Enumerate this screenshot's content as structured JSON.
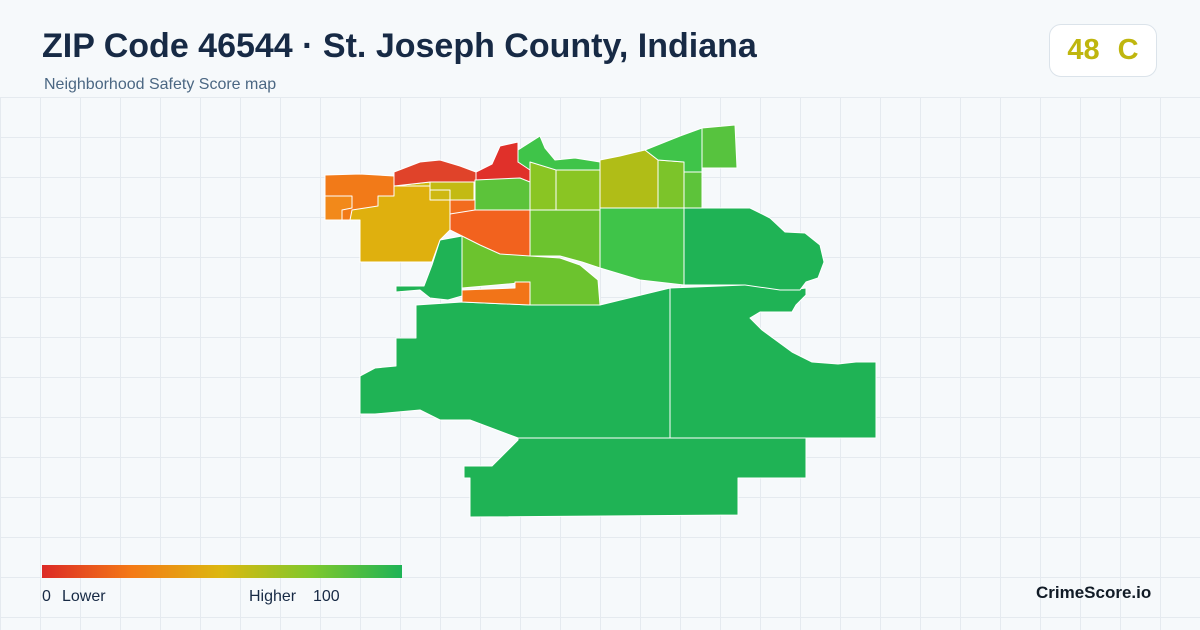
{
  "header": {
    "title": "ZIP Code 46544 · St. Joseph County, Indiana",
    "subtitle": "Neighborhood Safety Score map"
  },
  "score": {
    "value": "48",
    "grade": "C",
    "color": "#bfb60e"
  },
  "legend": {
    "min_value": "0",
    "min_label": "Lower",
    "max_label": "Higher",
    "max_value": "100",
    "gradient_colors": [
      "#dc2a26",
      "#f47a16",
      "#dcb810",
      "#7ec82c",
      "#1eb356"
    ]
  },
  "brand": "CrimeScore.io",
  "regions": [
    {
      "id": "south-large",
      "color": "#1fb355"
    },
    {
      "id": "east-large",
      "color": "#1fb355"
    },
    {
      "id": "northeast-large",
      "color": "#1fb355"
    },
    {
      "id": "west-large",
      "color": "#1fb355"
    },
    {
      "id": "central-west-lobe",
      "color": "#1fb355"
    },
    {
      "id": "mid-green-1",
      "color": "#6cc32e"
    },
    {
      "id": "mid-green-2",
      "color": "#6cc32e"
    },
    {
      "id": "mid-green-3",
      "color": "#3fc449"
    },
    {
      "id": "mid-orange-small",
      "color": "#f27418"
    },
    {
      "id": "mid-orange",
      "color": "#f2621e"
    },
    {
      "id": "northwest-yellow",
      "color": "#dfb00e"
    },
    {
      "id": "north-yellow-2",
      "color": "#ceb811"
    },
    {
      "id": "north-yellow-3",
      "color": "#c3ba13"
    },
    {
      "id": "north-red",
      "color": "#e0432a"
    },
    {
      "id": "north-red-2",
      "color": "#e0302a"
    },
    {
      "id": "north-orange",
      "color": "#f27a18"
    },
    {
      "id": "north-green-1",
      "color": "#3fc449"
    },
    {
      "id": "north-green-2",
      "color": "#8ac523"
    },
    {
      "id": "north-green-3",
      "color": "#8ac523"
    },
    {
      "id": "north-olive",
      "color": "#b0bd17"
    },
    {
      "id": "north-green-4",
      "color": "#7cc42a"
    },
    {
      "id": "north-green-5",
      "color": "#3fc449"
    },
    {
      "id": "north-green-6",
      "color": "#5dc33a"
    },
    {
      "id": "northeast-tip",
      "color": "#57c33e"
    },
    {
      "id": "center-green",
      "color": "#5cc33a"
    },
    {
      "id": "west-orange-small",
      "color": "#f2891a"
    },
    {
      "id": "west-orange-2",
      "color": "#f26c1e"
    }
  ]
}
